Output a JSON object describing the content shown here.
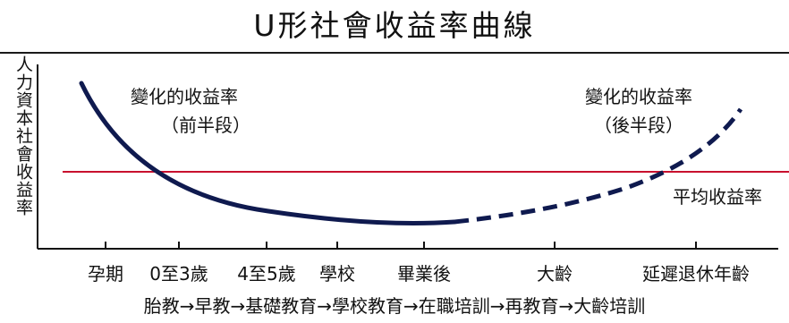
{
  "title": "U形社會收益率曲線",
  "y_axis_label": "人力資本社會收益率",
  "curve_labels": {
    "left_line1": "變化的收益率",
    "left_line2": "（前半段）",
    "right_line1": "變化的收益率",
    "right_line2": "（後半段）"
  },
  "average_line_label": "平均收益率",
  "x_ticks": [
    "孕期",
    "0至3歲",
    "4至5歲",
    "學校",
    "畢業後",
    "大齡",
    "延遲退休年齡"
  ],
  "stages_line": "胎教→早教→基礎教育→學校教育→在職培訓→再教育→大齡培訓",
  "colors": {
    "curve": "#0f1a4f",
    "average_line": "#c8102e",
    "axis": "#111111"
  }
}
